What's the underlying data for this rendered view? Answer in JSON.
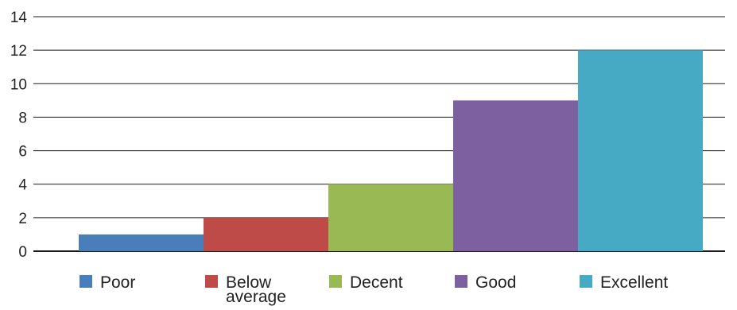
{
  "chart_data": {
    "type": "bar",
    "categories": [
      "Poor",
      "Below average",
      "Decent",
      "Good",
      "Excellent"
    ],
    "values": [
      1,
      2,
      4,
      9,
      12
    ],
    "colors": [
      "#4a7ebb",
      "#be4b48",
      "#98b954",
      "#7d60a0",
      "#46aac5"
    ],
    "ylim": [
      0,
      14
    ],
    "yticks": [
      "0",
      "2",
      "4",
      "6",
      "8",
      "10",
      "12",
      "14"
    ],
    "grid": true,
    "legend": {
      "position": "bottom",
      "entries": [
        "Poor",
        "Below average",
        "Decent",
        "Good",
        "Excellent"
      ]
    },
    "title": "",
    "xlabel": "",
    "ylabel": ""
  }
}
